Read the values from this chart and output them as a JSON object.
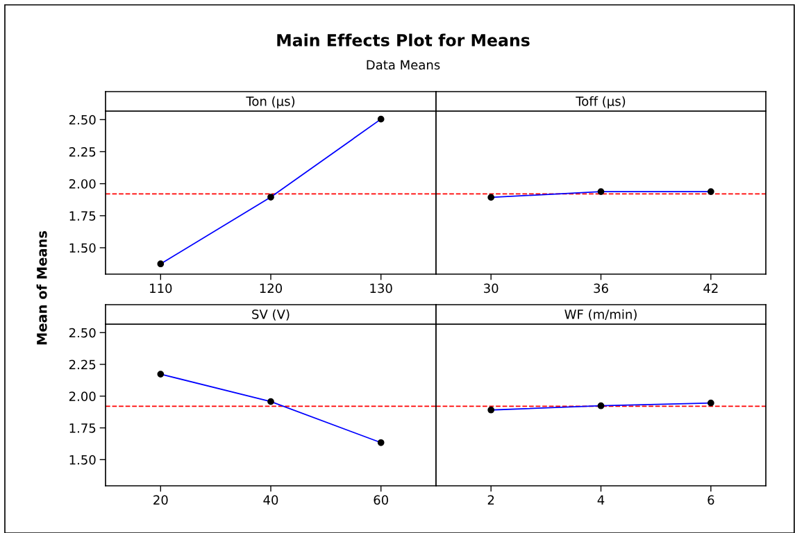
{
  "chart_data": [
    {
      "type": "line",
      "title": "Ton (µs)",
      "ylabel": "Mean of Means",
      "annotations": [
        "Main Effects Plot for Means",
        "Data Means"
      ],
      "categories": [
        "110",
        "120",
        "130"
      ],
      "series": [
        {
          "color": "#0000ff",
          "values": [
            1.374,
            1.895,
            2.504
          ]
        }
      ],
      "marker": "circle",
      "line_style": "solid",
      "ylim": [
        1.294,
        2.567
      ],
      "yticks": [
        {
          "value": 1.5,
          "label": "1.50"
        },
        1.75,
        {
          "value": 2,
          "label": "2.00"
        },
        2.25,
        {
          "value": 2.5,
          "label": "2.50"
        }
      ],
      "ref_lines": [
        {
          "axis": "y",
          "value": 1.92,
          "color": "#ff0000",
          "line_style": "dashed"
        }
      ],
      "grid": false,
      "legend": false
    },
    {
      "type": "line",
      "title": "Toff (µs)",
      "categories": [
        "30",
        "36",
        "42"
      ],
      "series": [
        {
          "color": "#0000ff",
          "values": [
            1.893,
            1.938,
            1.938
          ]
        }
      ],
      "marker": "circle",
      "line_style": "solid",
      "ylim": [
        1.294,
        2.567
      ],
      "yticks": [
        1.5,
        1.75,
        2.0,
        2.25,
        2.5
      ],
      "tick_labels": "x",
      "ref_lines": [
        {
          "axis": "y",
          "value": 1.92,
          "color": "#ff0000",
          "line_style": "dashed"
        }
      ],
      "grid": false,
      "legend": false
    },
    {
      "type": "line",
      "title": "SV (V)",
      "categories": [
        "20",
        "40",
        "60"
      ],
      "series": [
        {
          "color": "#0000ff",
          "values": [
            2.173,
            1.957,
            1.634
          ]
        }
      ],
      "marker": "circle",
      "line_style": "solid",
      "ylim": [
        1.294,
        2.567
      ],
      "yticks": [
        {
          "value": 1.5,
          "label": "1.50"
        },
        1.75,
        {
          "value": 2,
          "label": "2.00"
        },
        2.25,
        {
          "value": 2.5,
          "label": "2.50"
        }
      ],
      "ref_lines": [
        {
          "axis": "y",
          "value": 1.92,
          "color": "#ff0000",
          "line_style": "dashed"
        }
      ],
      "grid": false,
      "legend": false
    },
    {
      "type": "line",
      "title": "WF (m/min)",
      "categories": [
        "2",
        "4",
        "6"
      ],
      "series": [
        {
          "color": "#0000ff",
          "values": [
            1.891,
            1.924,
            1.946
          ]
        }
      ],
      "marker": "circle",
      "line_style": "solid",
      "ylim": [
        1.294,
        2.567
      ],
      "yticks": [
        1.5,
        1.75,
        2.0,
        2.25,
        2.5
      ],
      "tick_labels": "x",
      "ref_lines": [
        {
          "axis": "y",
          "value": 1.92,
          "color": "#ff0000",
          "line_style": "dashed"
        }
      ],
      "grid": false,
      "legend": false
    }
  ]
}
